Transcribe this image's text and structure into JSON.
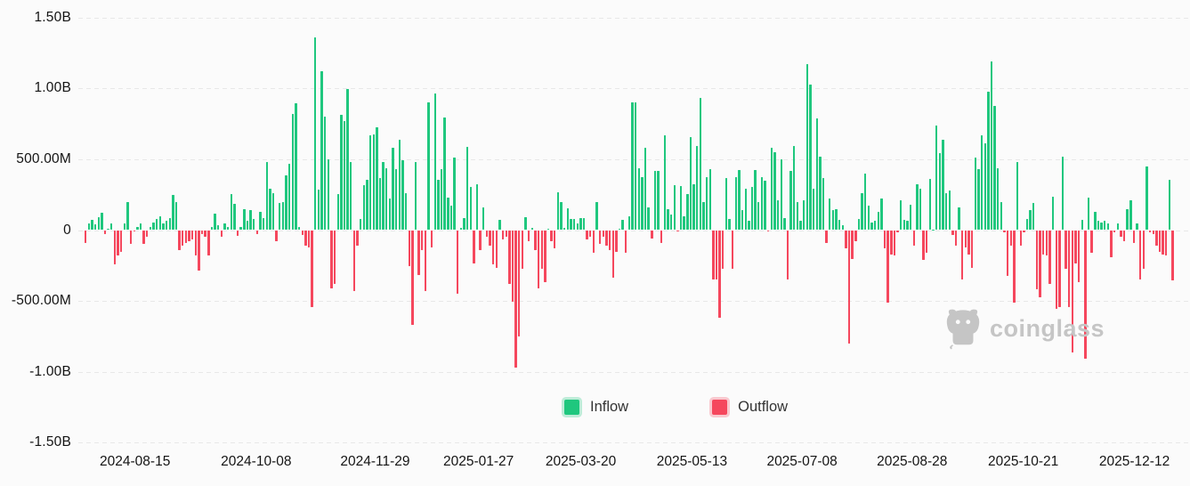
{
  "chart": {
    "watermark": "coinglass",
    "background_color": "#fbfbfb",
    "grid_color": "#e8e8e8",
    "axis_text_color": "#141414"
  },
  "chart_data": {
    "type": "bar",
    "title": "",
    "xlabel": "",
    "ylabel": "",
    "unit_note": "daily net flow, millions USD; positive = Inflow (green), negative = Outflow (red)",
    "legend": [
      {
        "label": "Inflow",
        "color": "#1fc77e"
      },
      {
        "label": "Outflow",
        "color": "#f5475d"
      }
    ],
    "legend_position": "bottom-center-inside",
    "grid": "dashed-horizontal",
    "ylim_millions": [
      -1500,
      1500
    ],
    "y_ticks": [
      {
        "label": "1.50B",
        "value": 1500
      },
      {
        "label": "1.00B",
        "value": 1000
      },
      {
        "label": "500.00M",
        "value": 500
      },
      {
        "label": "0",
        "value": 0
      },
      {
        "label": "-500.00M",
        "value": -500
      },
      {
        "label": "-1.00B",
        "value": -1000
      },
      {
        "label": "-1.50B",
        "value": -1500
      }
    ],
    "x_ticks": [
      {
        "label": "2024-08-15",
        "pos_pct": 5.1
      },
      {
        "label": "2024-10-08",
        "pos_pct": 16.0
      },
      {
        "label": "2024-11-29",
        "pos_pct": 26.7
      },
      {
        "label": "2025-01-27",
        "pos_pct": 36.0
      },
      {
        "label": "2025-03-20",
        "pos_pct": 45.2
      },
      {
        "label": "2025-05-13",
        "pos_pct": 55.2
      },
      {
        "label": "2025-07-08",
        "pos_pct": 65.1
      },
      {
        "label": "2025-08-28",
        "pos_pct": 75.0
      },
      {
        "label": "2025-10-21",
        "pos_pct": 85.0
      },
      {
        "label": "2025-12-12",
        "pos_pct": 95.0
      }
    ],
    "values_millions": [
      -89,
      45,
      70,
      39,
      91,
      124,
      -31,
      8,
      45,
      -244,
      -182,
      -151,
      50,
      197,
      -95,
      -10,
      25,
      45,
      -99,
      -48,
      25,
      56,
      77,
      97,
      45,
      66,
      87,
      246,
      195,
      -141,
      -110,
      -89,
      -79,
      -68,
      -182,
      -286,
      -27,
      -48,
      -182,
      25,
      118,
      35,
      -48,
      45,
      21,
      257,
      186,
      -41,
      21,
      149,
      66,
      139,
      77,
      -30,
      128,
      87,
      481,
      294,
      263,
      -79,
      190,
      201,
      387,
      470,
      822,
      894,
      25,
      -37,
      -110,
      -120,
      -545,
      1360,
      284,
      1122,
      801,
      501,
      -410,
      -379,
      253,
      812,
      770,
      998,
      480,
      -431,
      -110,
      77,
      315,
      356,
      667,
      677,
      729,
      366,
      480,
      439,
      222,
      584,
      428,
      636,
      491,
      263,
      -255,
      -669,
      480,
      -317,
      -141,
      -430,
      905,
      -120,
      967,
      356,
      429,
      795,
      232,
      170,
      511,
      -451,
      15,
      87,
      588,
      304,
      -234,
      325,
      -141,
      159,
      -48,
      -110,
      -244,
      -265,
      70,
      -68,
      -48,
      -379,
      -509,
      -969,
      -751,
      -275,
      91,
      -79,
      15,
      -141,
      -410,
      -275,
      -368,
      10,
      -79,
      -130,
      269,
      201,
      15,
      153,
      77,
      77,
      45,
      87,
      87,
      -68,
      -48,
      -162,
      201,
      -99,
      -48,
      -110,
      -141,
      -337,
      -151,
      8,
      70,
      -162,
      97,
      905,
      905,
      439,
      377,
      584,
      159,
      -58,
      418,
      418,
      -89,
      667,
      149,
      112,
      315,
      -12,
      310,
      97,
      253,
      656,
      325,
      594,
      936,
      201,
      377,
      428,
      -348,
      -348,
      -617,
      -275,
      366,
      77,
      -275,
      377,
      422,
      139,
      294,
      66,
      304,
      422,
      201,
      377,
      352,
      -10,
      584,
      553,
      211,
      501,
      87,
      -348,
      418,
      594,
      201,
      66,
      211,
      1174,
      1029,
      294,
      791,
      522,
      366,
      -89,
      222,
      139,
      149,
      70,
      35,
      -130,
      -803,
      -203,
      -79,
      77,
      263,
      397,
      170,
      56,
      66,
      128,
      222,
      -130,
      -513,
      -172,
      -182,
      -17,
      211,
      70,
      66,
      180,
      -110,
      325,
      294,
      -213,
      -162,
      360,
      5,
      739,
      546,
      636,
      263,
      277,
      -37,
      -110,
      159,
      -348,
      -120,
      -172,
      -265,
      512,
      428,
      667,
      615,
      977,
      1194,
      878,
      439,
      201,
      -17,
      -327,
      -110,
      -513,
      480,
      -110,
      -17,
      77,
      139,
      194,
      -420,
      -472,
      -172,
      -182,
      -379,
      236,
      -555,
      -545,
      522,
      -275,
      -545,
      -865,
      -234,
      -368,
      70,
      -907,
      232,
      -162,
      128,
      66,
      56,
      66,
      45,
      -192,
      -17,
      45,
      -48,
      -79,
      149,
      211,
      -89,
      45,
      -348,
      -275,
      450,
      -17,
      -27,
      -110,
      -151,
      -172,
      -182,
      354,
      -353
    ]
  }
}
